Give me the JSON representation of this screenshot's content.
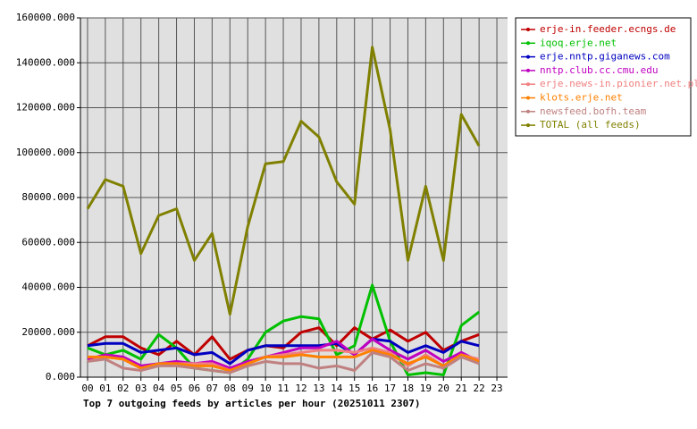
{
  "chart_data": {
    "type": "line",
    "title": "Top 7 outgoing feeds by articles per hour (20251011 2307)",
    "categories": [
      "00",
      "01",
      "02",
      "03",
      "04",
      "05",
      "06",
      "07",
      "08",
      "09",
      "10",
      "11",
      "12",
      "13",
      "14",
      "15",
      "16",
      "17",
      "18",
      "19",
      "20",
      "21",
      "22",
      "23"
    ],
    "ylim": [
      0,
      160000
    ],
    "yticks": [
      {
        "value": 0,
        "label": "0.000"
      },
      {
        "value": 20000,
        "label": "20000.000"
      },
      {
        "value": 40000,
        "label": "40000.000"
      },
      {
        "value": 60000,
        "label": "60000.000"
      },
      {
        "value": 80000,
        "label": "80000.000"
      },
      {
        "value": 100000,
        "label": "100000.000"
      },
      {
        "value": 120000,
        "label": "120000.000"
      },
      {
        "value": 140000,
        "label": "140000.000"
      },
      {
        "value": 160000,
        "label": "160000.000"
      }
    ],
    "grid": true,
    "legend": "right",
    "series": [
      {
        "name": "erje-in.feeder.ecngs.de",
        "color": "#c00000",
        "values": [
          14000,
          18000,
          18000,
          13000,
          10000,
          16000,
          10000,
          18000,
          8000,
          12000,
          14000,
          13000,
          20000,
          22000,
          14000,
          22000,
          17000,
          21000,
          16000,
          20000,
          12000,
          16000,
          19000,
          null
        ]
      },
      {
        "name": "iqoq.erje.net",
        "color": "#00c000",
        "values": [
          13000,
          10000,
          12000,
          8000,
          19000,
          13000,
          4000,
          3000,
          2000,
          8000,
          20000,
          25000,
          27000,
          26000,
          10000,
          14000,
          41000,
          16000,
          1000,
          2000,
          1000,
          23000,
          29000,
          null
        ]
      },
      {
        "name": "erje.nntp.giganews.com",
        "color": "#0000c0",
        "values": [
          14000,
          15000,
          15000,
          11000,
          12000,
          13000,
          10000,
          11000,
          6000,
          12000,
          14000,
          14000,
          14000,
          14000,
          15000,
          10000,
          17000,
          16000,
          11000,
          14000,
          11000,
          16000,
          14000,
          null
        ]
      },
      {
        "name": "nntp.club.cc.cmu.edu",
        "color": "#c000c0",
        "values": [
          8000,
          10000,
          9000,
          5000,
          6000,
          7000,
          6000,
          7000,
          4000,
          7000,
          9000,
          11000,
          13000,
          13000,
          16000,
          10000,
          17000,
          12000,
          8000,
          12000,
          7000,
          11000,
          7000,
          null
        ]
      },
      {
        "name": "erje.news-in.pionier.net.pl",
        "color": "#f08080",
        "values": [
          7000,
          9000,
          8000,
          4000,
          6000,
          6000,
          6000,
          6000,
          3000,
          6000,
          9000,
          10000,
          11000,
          12000,
          12000,
          11000,
          13000,
          11000,
          5000,
          10000,
          5000,
          10000,
          8000,
          null
        ]
      },
      {
        "name": "klots.erje.net",
        "color": "#ff8000",
        "values": [
          9000,
          9000,
          8000,
          4000,
          6000,
          6000,
          5000,
          5000,
          3000,
          6000,
          9000,
          9000,
          10000,
          9000,
          9000,
          9000,
          12000,
          10000,
          6000,
          9000,
          5000,
          10000,
          7000,
          null
        ]
      },
      {
        "name": "newsfeed.bofh.team",
        "color": "#c08080",
        "values": [
          7000,
          8000,
          4000,
          3000,
          5000,
          5000,
          4000,
          3000,
          2000,
          5000,
          7000,
          6000,
          6000,
          4000,
          5000,
          3000,
          11000,
          9000,
          3000,
          6000,
          4000,
          9000,
          6000,
          null
        ]
      },
      {
        "name": "TOTAL (all feeds)",
        "color": "#808000",
        "values": [
          75000,
          88000,
          85000,
          55000,
          72000,
          75000,
          52000,
          64000,
          28000,
          67000,
          95000,
          96000,
          114000,
          107000,
          87000,
          77000,
          147000,
          110000,
          52000,
          85000,
          52000,
          117000,
          103000,
          null
        ]
      }
    ]
  }
}
